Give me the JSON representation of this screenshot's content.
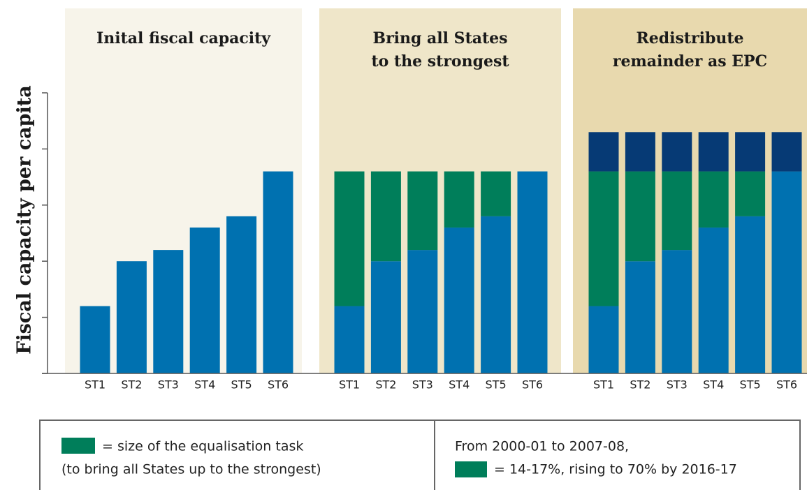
{
  "chart_data": [
    {
      "type": "bar",
      "stacked": true,
      "background": "#f7f4ea",
      "title": [
        "Inital fiscal capacity"
      ],
      "ylabel": "Fiscal capacity per capita",
      "categories": [
        "ST1",
        "ST2",
        "ST3",
        "ST4",
        "ST5",
        "ST6"
      ],
      "series": [
        {
          "color": "#0071b0",
          "values": [
            1.2,
            2.0,
            2.2,
            2.6,
            2.8,
            3.6
          ]
        }
      ],
      "ylim": [
        0,
        5
      ],
      "yticks": [
        0,
        1,
        2,
        3,
        4,
        5
      ]
    },
    {
      "type": "bar",
      "stacked": true,
      "background": "#efe6c9",
      "title": [
        "Bring all States",
        "to the strongest"
      ],
      "categories": [
        "ST1",
        "ST2",
        "ST3",
        "ST4",
        "ST5",
        "ST6"
      ],
      "series": [
        {
          "color": "#0071b0",
          "values": [
            1.2,
            2.0,
            2.2,
            2.6,
            2.8,
            3.6
          ]
        },
        {
          "color": "#007e5a",
          "values": [
            2.4,
            1.6,
            1.4,
            1.0,
            0.8,
            0
          ]
        }
      ],
      "ylim": [
        0,
        5
      ]
    },
    {
      "type": "bar",
      "stacked": true,
      "background": "#e8d9ae",
      "title": [
        "Redistribute",
        "remainder as EPC"
      ],
      "categories": [
        "ST1",
        "ST2",
        "ST3",
        "ST4",
        "ST5",
        "ST6"
      ],
      "series": [
        {
          "color": "#0071b0",
          "values": [
            1.2,
            2.0,
            2.2,
            2.6,
            2.8,
            3.6
          ]
        },
        {
          "color": "#007e5a",
          "values": [
            2.4,
            1.6,
            1.4,
            1.0,
            0.8,
            0
          ]
        },
        {
          "color": "#063a75",
          "values": [
            0.7,
            0.7,
            0.7,
            0.7,
            0.7,
            0.7
          ]
        }
      ],
      "ylim": [
        0,
        5
      ]
    }
  ],
  "legend_box": {
    "left": [
      "= size of the equalisation task",
      "(to bring all States up to the strongest)"
    ],
    "right": [
      "From 2000-01 to 2007-08,",
      "= 14-17%, rising to 70% by 2016-17"
    ]
  }
}
